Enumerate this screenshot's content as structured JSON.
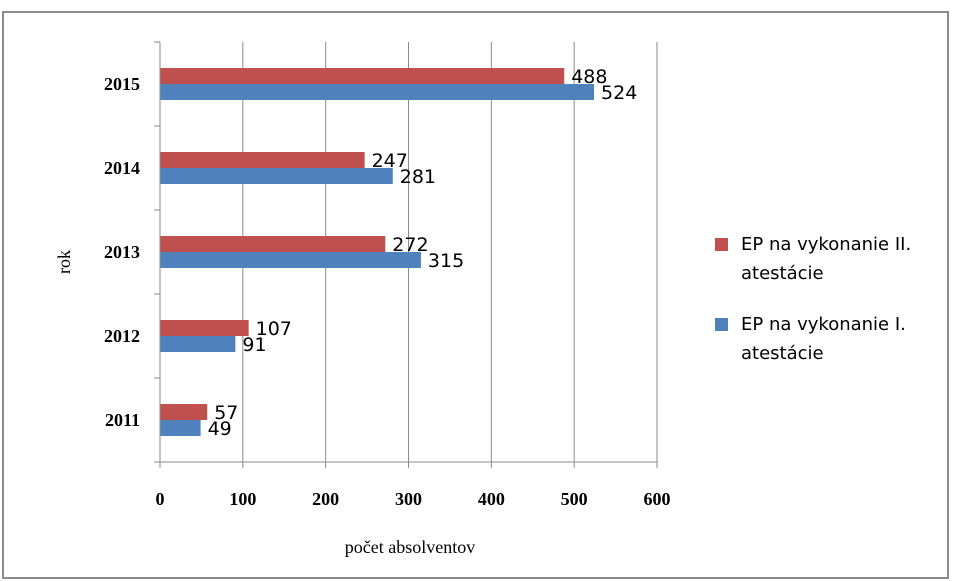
{
  "chart_data": {
    "type": "bar",
    "orientation": "horizontal",
    "categories": [
      "2011",
      "2012",
      "2013",
      "2014",
      "2015"
    ],
    "series": [
      {
        "name": "EP na vykonanie II. atestácie",
        "values": [
          57,
          107,
          272,
          247,
          488
        ],
        "color": "#c0504d"
      },
      {
        "name": "EP na vykonanie I. atestácie",
        "values": [
          49,
          91,
          315,
          281,
          524
        ],
        "color": "#4f81bd"
      }
    ],
    "legend_lines": [
      [
        "EP na vykonanie II.",
        "atestácie"
      ],
      [
        "EP na vykonanie I.",
        "atestácie"
      ]
    ],
    "xlabel": "počet absolventov",
    "ylabel": "rok",
    "xlim": [
      0,
      600
    ],
    "xticks": [
      "0",
      "100",
      "200",
      "300",
      "400",
      "500",
      "600"
    ],
    "grid": true,
    "legend_position": "right"
  }
}
